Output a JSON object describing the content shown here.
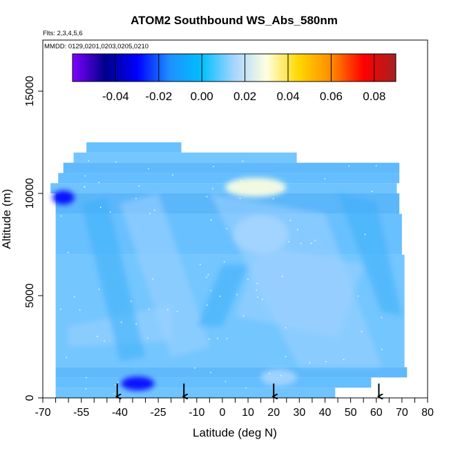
{
  "chart_data": {
    "type": "heatmap",
    "title": "ATOM2 Southbound WS_Abs_580nm",
    "flights_label": "Flts: 2,3,4,5,6",
    "dates_label": "MMDD: 0129,0201,0203,0205,0210",
    "xlabel": "Latitude (deg N)",
    "ylabel": "Altitude (m)",
    "xlim": [
      -70,
      80
    ],
    "ylim": [
      0,
      17500
    ],
    "x_ticks": [
      -70,
      -55,
      -40,
      -25,
      -10,
      0,
      10,
      20,
      30,
      40,
      50,
      60,
      70,
      80
    ],
    "y_ticks": [
      0,
      5000,
      10000,
      15000
    ],
    "colorbar": {
      "range": [
        -0.06,
        0.09
      ],
      "ticks": [
        -0.04,
        -0.02,
        0.0,
        0.02,
        0.04,
        0.06,
        0.08
      ],
      "tick_labels": [
        "-0.04",
        "-0.02",
        "0.00",
        "0.02",
        "0.04",
        "0.06",
        "0.08"
      ],
      "colors": [
        "#7f00ff",
        "#00008b",
        "#0000ff",
        "#1e90ff",
        "#00bfff",
        "#a6d5ff",
        "#ffffe0",
        "#ffd700",
        "#ff8c00",
        "#ff0000",
        "#a52020"
      ]
    },
    "arrows_lat": [
      -41,
      -15,
      20,
      61
    ],
    "altitude_bands": [
      {
        "alt_min": 0,
        "alt_max": 500,
        "lat_min": -65,
        "lat_max": 44
      },
      {
        "alt_min": 500,
        "alt_max": 1000,
        "lat_min": -65,
        "lat_max": 58
      },
      {
        "alt_min": 1000,
        "alt_max": 1500,
        "lat_min": -65,
        "lat_max": 72
      },
      {
        "alt_min": 1500,
        "alt_max": 7000,
        "lat_min": -65,
        "lat_max": 71
      },
      {
        "alt_min": 7000,
        "alt_max": 9000,
        "lat_min": -65,
        "lat_max": 70
      },
      {
        "alt_min": 9000,
        "alt_max": 10000,
        "lat_min": -65,
        "lat_max": 69
      },
      {
        "alt_min": 10000,
        "alt_max": 10500,
        "lat_min": -67,
        "lat_max": 68
      },
      {
        "alt_min": 10500,
        "alt_max": 11000,
        "lat_min": -64,
        "lat_max": 69
      },
      {
        "alt_min": 11000,
        "alt_max": 11500,
        "lat_min": -62,
        "lat_max": 69
      },
      {
        "alt_min": 11500,
        "alt_max": 12000,
        "lat_min": -58,
        "lat_max": 29
      },
      {
        "alt_min": 12000,
        "alt_max": 12500,
        "lat_min": -53,
        "lat_max": -16
      }
    ],
    "features": [
      {
        "lat": 13,
        "alt": 10300,
        "value": 0.025
      },
      {
        "lat": 15,
        "alt": 8000,
        "value": 0.02
      },
      {
        "lat": 22,
        "alt": 1000,
        "value": 0.022
      },
      {
        "lat": -33,
        "alt": 700,
        "value": -0.03
      },
      {
        "lat": -62,
        "alt": 9800,
        "value": -0.03
      }
    ]
  }
}
